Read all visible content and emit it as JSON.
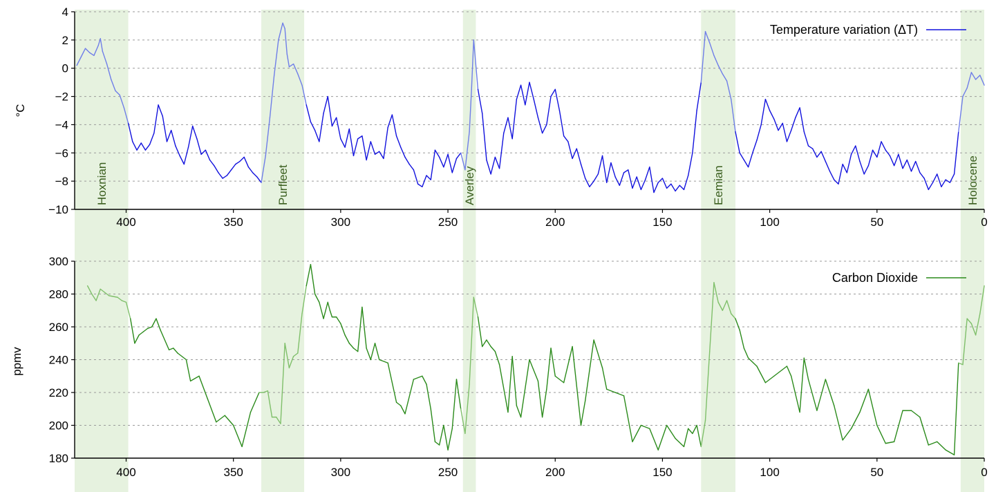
{
  "colors": {
    "temperature": "#1111dd",
    "temperature_interglacial": "#6f7ee8",
    "co2": "#2a8a1a",
    "co2_interglacial": "#7fbf6a",
    "interglacial_band": "#e6f2df",
    "period_label": "#3a5e1e"
  },
  "interglacials": [
    {
      "name": "Hoxnian",
      "start": 424,
      "end": 399
    },
    {
      "name": "Purfleet",
      "start": 337,
      "end": 317
    },
    {
      "name": "Averley",
      "start": 243,
      "end": 237
    },
    {
      "name": "Eemian",
      "start": 132,
      "end": 116
    },
    {
      "name": "Holocene",
      "start": 11,
      "end": 0
    }
  ],
  "chart_data": [
    {
      "type": "line",
      "title": "",
      "xlabel": "",
      "ylabel": "°C",
      "xlim": [
        424,
        0
      ],
      "ylim": [
        -10,
        4
      ],
      "xticks": [
        400,
        350,
        300,
        250,
        200,
        150,
        100,
        50,
        0
      ],
      "yticks": [
        -10,
        -8,
        -6,
        -4,
        -2,
        0,
        2,
        4
      ],
      "grid": "horizontal dashed",
      "legend_position": "top-right",
      "series": [
        {
          "name": "Temperature variation (ΔT)",
          "x": [
            423,
            421,
            419,
            417,
            415,
            413,
            412,
            411,
            409,
            407,
            405,
            403,
            401,
            399,
            397,
            395,
            393,
            391,
            389,
            387,
            385,
            383,
            381,
            379,
            377,
            375,
            373,
            371,
            369,
            367,
            365,
            363,
            361,
            359,
            357,
            355,
            353,
            351,
            349,
            347,
            345,
            343,
            341,
            339,
            337,
            335,
            333,
            331,
            329,
            327,
            326,
            325,
            324,
            322,
            320,
            318,
            316,
            314,
            312,
            310,
            308,
            306,
            304,
            302,
            300,
            298,
            296,
            294,
            292,
            290,
            288,
            286,
            284,
            282,
            280,
            278,
            276,
            274,
            272,
            270,
            268,
            266,
            264,
            262,
            260,
            258,
            256,
            254,
            252,
            250,
            248,
            246,
            244,
            242,
            240,
            239,
            238,
            236,
            234,
            232,
            230,
            228,
            226,
            224,
            222,
            220,
            218,
            216,
            214,
            212,
            210,
            208,
            206,
            204,
            202,
            200,
            198,
            196,
            194,
            192,
            190,
            188,
            186,
            184,
            182,
            180,
            178,
            176,
            174,
            172,
            170,
            168,
            166,
            164,
            162,
            160,
            158,
            156,
            154,
            152,
            150,
            148,
            146,
            144,
            142,
            140,
            138,
            136,
            134,
            132,
            130,
            128,
            126,
            124,
            122,
            120,
            118,
            116,
            114,
            112,
            110,
            108,
            106,
            104,
            102,
            100,
            98,
            96,
            94,
            92,
            90,
            88,
            86,
            84,
            82,
            80,
            78,
            76,
            74,
            72,
            70,
            68,
            66,
            64,
            62,
            60,
            58,
            56,
            54,
            52,
            50,
            48,
            46,
            44,
            42,
            40,
            38,
            36,
            34,
            32,
            30,
            28,
            26,
            24,
            22,
            20,
            18,
            16,
            14,
            12,
            10,
            8,
            6,
            4,
            2,
            0
          ],
          "y": [
            0.2,
            0.8,
            1.4,
            1.1,
            0.9,
            1.6,
            2.1,
            1.2,
            0.3,
            -0.8,
            -1.6,
            -1.9,
            -2.8,
            -3.9,
            -5.2,
            -5.8,
            -5.3,
            -5.8,
            -5.4,
            -4.6,
            -2.6,
            -3.4,
            -5.2,
            -4.4,
            -5.5,
            -6.2,
            -6.8,
            -5.6,
            -4.1,
            -5.0,
            -6.1,
            -5.8,
            -6.5,
            -6.9,
            -7.4,
            -7.8,
            -7.6,
            -7.2,
            -6.8,
            -6.6,
            -6.3,
            -7.0,
            -7.4,
            -7.7,
            -8.1,
            -6.2,
            -3.5,
            -0.5,
            2.0,
            3.2,
            2.8,
            1.0,
            0.1,
            0.3,
            -0.4,
            -1.2,
            -2.6,
            -3.8,
            -4.4,
            -5.2,
            -3.2,
            -2.0,
            -4.1,
            -3.5,
            -5.0,
            -5.6,
            -4.3,
            -6.2,
            -5.0,
            -4.8,
            -6.5,
            -5.2,
            -6.1,
            -5.9,
            -6.4,
            -4.2,
            -3.3,
            -4.8,
            -5.6,
            -6.3,
            -6.8,
            -7.2,
            -8.2,
            -8.4,
            -7.6,
            -7.9,
            -5.8,
            -6.3,
            -7.0,
            -6.1,
            -7.4,
            -6.4,
            -6.0,
            -7.2,
            -4.5,
            -1.5,
            2.0,
            -1.5,
            -3.2,
            -6.5,
            -7.5,
            -6.3,
            -7.1,
            -4.6,
            -3.5,
            -5.0,
            -2.2,
            -1.2,
            -2.6,
            -1.0,
            -2.2,
            -3.5,
            -4.6,
            -4.0,
            -2.0,
            -1.5,
            -3.0,
            -4.8,
            -5.2,
            -6.4,
            -5.7,
            -6.8,
            -7.8,
            -8.4,
            -8.0,
            -7.5,
            -6.2,
            -8.1,
            -6.7,
            -7.7,
            -8.3,
            -7.4,
            -7.2,
            -8.5,
            -7.7,
            -8.6,
            -7.9,
            -7.0,
            -8.8,
            -8.1,
            -7.8,
            -8.5,
            -8.2,
            -8.7,
            -8.3,
            -8.6,
            -7.6,
            -6.0,
            -3.0,
            -1.0,
            2.6,
            1.8,
            0.9,
            0.2,
            -0.4,
            -0.9,
            -2.2,
            -4.5,
            -6.0,
            -6.5,
            -7.0,
            -6.0,
            -5.1,
            -4.0,
            -2.2,
            -3.0,
            -3.6,
            -4.4,
            -3.9,
            -5.2,
            -4.4,
            -3.5,
            -2.8,
            -4.5,
            -5.5,
            -5.7,
            -6.3,
            -5.9,
            -6.6,
            -7.3,
            -7.9,
            -8.2,
            -6.8,
            -7.4,
            -6.1,
            -5.5,
            -6.6,
            -7.5,
            -6.9,
            -5.8,
            -6.3,
            -5.2,
            -5.8,
            -6.2,
            -6.9,
            -6.1,
            -7.1,
            -6.5,
            -7.3,
            -6.6,
            -7.4,
            -7.8,
            -8.6,
            -8.1,
            -7.5,
            -8.4,
            -7.9,
            -8.1,
            -7.5,
            -4.5,
            -2.0,
            -1.4,
            -0.3,
            -0.8,
            -0.5,
            -1.2
          ]
        }
      ]
    },
    {
      "type": "line",
      "title": "",
      "xlabel": "",
      "ylabel": "ppmv",
      "xlim": [
        424,
        0
      ],
      "ylim": [
        180,
        300
      ],
      "xticks": [
        400,
        350,
        300,
        250,
        200,
        150,
        100,
        50,
        0
      ],
      "yticks": [
        180,
        200,
        220,
        240,
        260,
        280,
        300
      ],
      "grid": "horizontal dashed",
      "legend_position": "top-right",
      "series": [
        {
          "name": "Carbon Dioxide",
          "x": [
            418,
            416,
            414,
            412,
            410,
            408,
            404,
            402,
            400,
            398,
            396,
            394,
            392,
            390,
            388,
            386,
            384,
            380,
            378,
            376,
            372,
            370,
            366,
            362,
            358,
            354,
            350,
            346,
            342,
            338,
            336,
            334,
            332,
            330,
            328,
            326,
            324,
            322,
            320,
            318,
            316,
            314,
            312,
            310,
            308,
            306,
            305,
            304,
            302,
            300,
            298,
            296,
            294,
            292,
            290,
            288,
            286,
            284,
            282,
            278,
            274,
            272,
            270,
            266,
            262,
            260,
            258,
            256,
            254,
            252,
            250,
            248,
            246,
            244,
            242,
            240,
            238,
            236,
            234,
            232,
            230,
            228,
            226,
            222,
            220,
            218,
            216,
            212,
            208,
            206,
            204,
            202,
            200,
            196,
            192,
            188,
            186,
            182,
            178,
            176,
            172,
            168,
            164,
            160,
            156,
            152,
            148,
            144,
            140,
            138,
            136,
            134,
            132,
            130,
            128,
            126,
            124,
            122,
            120,
            118,
            116,
            114,
            112,
            110,
            106,
            102,
            98,
            94,
            92,
            90,
            86,
            84,
            82,
            78,
            74,
            70,
            66,
            62,
            58,
            54,
            50,
            46,
            42,
            38,
            34,
            30,
            26,
            22,
            18,
            14,
            12,
            10,
            8,
            6,
            4,
            2,
            0
          ],
          "y": [
            285,
            280,
            276,
            283,
            281,
            279,
            278,
            276,
            275,
            265,
            250,
            255,
            257,
            259,
            260,
            265,
            258,
            246,
            247,
            244,
            240,
            227,
            230,
            216,
            202,
            206,
            200,
            187,
            208,
            220,
            220,
            221,
            205,
            205,
            201,
            250,
            235,
            242,
            244,
            268,
            285,
            298,
            280,
            275,
            265,
            275,
            270,
            266,
            266,
            262,
            255,
            250,
            247,
            245,
            272,
            247,
            240,
            250,
            240,
            238,
            214,
            212,
            207,
            228,
            230,
            225,
            210,
            190,
            188,
            200,
            185,
            198,
            228,
            210,
            195,
            225,
            278,
            266,
            248,
            252,
            248,
            245,
            237,
            208,
            242,
            212,
            205,
            240,
            227,
            205,
            222,
            247,
            230,
            226,
            248,
            200,
            215,
            252,
            235,
            222,
            220,
            218,
            190,
            200,
            198,
            185,
            200,
            192,
            187,
            198,
            195,
            200,
            187,
            203,
            245,
            287,
            275,
            270,
            276,
            268,
            265,
            258,
            247,
            241,
            236,
            226,
            230,
            234,
            236,
            230,
            208,
            241,
            228,
            209,
            228,
            212,
            191,
            198,
            208,
            222,
            200,
            189,
            190,
            209,
            209,
            205,
            188,
            190,
            185,
            182,
            238,
            237,
            265,
            262,
            255,
            268,
            285
          ]
        }
      ]
    }
  ]
}
